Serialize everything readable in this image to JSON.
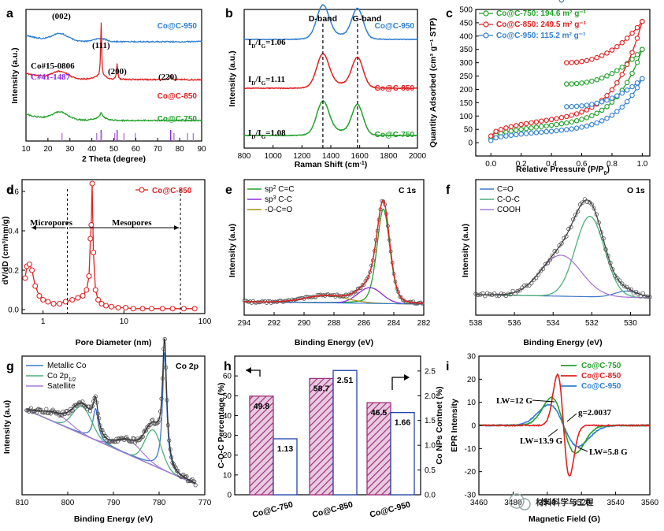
{
  "colors": {
    "green": "#22a02a",
    "red": "#e02020",
    "blue": "#2f7fd0",
    "purple": "#8a2be2",
    "hatch": "#a0307f",
    "olive": "#a89020",
    "darkgreen": "#1f8f6f",
    "lightpurple": "#b07ad6",
    "fit_green": "#4caf7a",
    "fit_purple": "#a77bd6",
    "fit_blue": "#3f78c8",
    "gray": "#555555"
  },
  "panels": [
    {
      "id": "a",
      "label": "a",
      "xlabel": "2 Theta (degree)",
      "ylabel": "Intensity (a.u.)",
      "xlim": [
        10,
        90
      ],
      "xticks": [
        "10",
        "20",
        "30",
        "40",
        "50",
        "60",
        "70",
        "80",
        "90"
      ],
      "series": [
        {
          "name": "Co@C-950"
        },
        {
          "name": "Co@C-850"
        },
        {
          "name": "Co@C-750"
        }
      ],
      "annotations": [
        "(002)",
        "(111)",
        "(200)",
        "(220)",
        "Co#15-0806",
        "C#41-1487"
      ],
      "reference_lines_co": [
        44.2,
        51.5,
        75.9
      ],
      "reference_lines_c": [
        26.4,
        42.2,
        44.4,
        50.4,
        54.6,
        59.8,
        77.4,
        83.6,
        86.2
      ]
    },
    {
      "id": "b",
      "label": "b",
      "xlabel": "Raman Shift (cm",
      "xlabel_sup": "-1",
      "xlabel_end": ")",
      "ylabel": "Intensity (a.u.)",
      "xlim": [
        800,
        2000
      ],
      "xticks": [
        "800",
        "1000",
        "1200",
        "1400",
        "1600",
        "1800",
        "2000"
      ],
      "series": [
        {
          "name": "Co@C-950",
          "ratio": "=1.06"
        },
        {
          "name": "Co@C-850",
          "ratio": "=1.11"
        },
        {
          "name": "Co@C-750",
          "ratio": "=1.08"
        }
      ],
      "band_labels": [
        "D-band",
        "G-band"
      ],
      "d_band": 1345,
      "g_band": 1585
    },
    {
      "id": "c",
      "label": "c",
      "xlabel": "Relative Pressure (P/P",
      "xlabel_sub": "0",
      "xlabel_end": ")",
      "ylabel": "Quantity Adsorbed (cm³ g⁻¹ STP)",
      "xlim": [
        -0.1,
        1.05
      ],
      "ylim": [
        -50,
        500
      ],
      "xticks": [
        "0.0",
        "0.2",
        "0.4",
        "0.6",
        "0.8",
        "1.0"
      ],
      "yticks": [
        "0",
        "50",
        "100",
        "150",
        "200",
        "250",
        "300",
        "350",
        "400",
        "450",
        "500"
      ],
      "legend": [
        "Co@C-750: 194.6 m² g⁻¹",
        "Co@C-850: 249.5 m² g⁻¹",
        "Co@C-950: 115.2 m² g⁻¹"
      ],
      "series": [
        {
          "name": "Co@C-750",
          "ads_max": 350,
          "des_jump": 220
        },
        {
          "name": "Co@C-850",
          "ads_max": 455,
          "des_jump": 300
        },
        {
          "name": "Co@C-950",
          "ads_max": 240,
          "des_jump": 135
        }
      ]
    },
    {
      "id": "d",
      "label": "d",
      "xlabel": "Pore Diameter (nm)",
      "ylabel": "dV/dD (cm³/nm/g)",
      "ylim": [
        -0.02,
        0.66
      ],
      "xticks": [
        "1",
        "10",
        "100"
      ],
      "yticks": [
        "0.0",
        "0.2",
        "0.4",
        "0.6"
      ],
      "legend": [
        "Co@C-850"
      ],
      "region_labels": [
        "Micropores",
        "Mesopores"
      ],
      "x": [
        0.6,
        0.63,
        0.68,
        0.73,
        0.8,
        0.9,
        1.0,
        1.15,
        1.35,
        1.6,
        1.9,
        2.3,
        2.7,
        3.1,
        3.45,
        3.7,
        3.85,
        3.95,
        4.05,
        4.2,
        4.45,
        4.8,
        5.3,
        6,
        7,
        8.5,
        10.5,
        13,
        17,
        22,
        30,
        40,
        55,
        75
      ],
      "y": [
        0.16,
        0.22,
        0.23,
        0.2,
        0.12,
        0.07,
        0.05,
        0.04,
        0.03,
        0.03,
        0.04,
        0.05,
        0.06,
        0.07,
        0.1,
        0.17,
        0.36,
        0.43,
        0.64,
        0.29,
        0.1,
        0.05,
        0.03,
        0.02,
        0.015,
        0.01,
        0.01,
        0.005,
        0.005,
        0.005,
        0.005,
        0.005,
        0.005,
        0.005
      ]
    },
    {
      "id": "e",
      "label": "e",
      "title": "C 1s",
      "xlabel": "Binding Energy (eV)",
      "ylabel": "Intensity (a.u)",
      "xlim": [
        294,
        282
      ],
      "xticks": [
        "294",
        "292",
        "290",
        "288",
        "286",
        "284",
        "282"
      ],
      "legend": [
        {
          "prefix": "sp",
          "sup": "2",
          "rest": " C=C"
        },
        {
          "prefix": "sp",
          "sup": "3",
          "rest": " C-C"
        },
        {
          "prefix": "-O-C=O",
          "sup": "",
          "rest": ""
        }
      ]
    },
    {
      "id": "f",
      "label": "f",
      "title": "O 1s",
      "xlabel": "Binding Energy (eV)",
      "ylabel": "Intensity (a.u)",
      "xlim": [
        538,
        529
      ],
      "xticks": [
        "538",
        "536",
        "534",
        "532",
        "530"
      ],
      "legend": [
        "C=O",
        "C-O-C",
        "COOH"
      ]
    },
    {
      "id": "g",
      "label": "g",
      "title": "Co 2p",
      "xlabel": "Binding Energy (eV)",
      "ylabel": "Intensity (a.u)",
      "xlim": [
        810,
        770
      ],
      "xticks": [
        "810",
        "800",
        "790",
        "780",
        "770"
      ],
      "legend": [
        {
          "text": "Metallic Co",
          "sub": ""
        },
        {
          "text": "Co 2p",
          "sub": "1/2"
        },
        {
          "text": "Satellite",
          "sub": ""
        }
      ]
    },
    {
      "id": "h",
      "label": "h",
      "type": "bar",
      "ylabel": "C-O-C Percentage (%)",
      "ylabel_right": "Co NPs Contnet (%)",
      "ylim_left": [
        0,
        70
      ],
      "ylim_right": [
        0,
        2.8
      ],
      "yticks_left": [
        "0",
        "10",
        "20",
        "30",
        "40",
        "50",
        "60"
      ],
      "yticks_right": [
        "0.0",
        "0.5",
        "1.0",
        "1.5",
        "2.0",
        "2.5"
      ],
      "categories": [
        "Co@C-750",
        "Co@C-850",
        "Co@C-950"
      ],
      "series": [
        {
          "name": "C-O-C Percentage",
          "values": [
            49.8,
            58.7,
            46.5
          ],
          "labels": [
            "49.8",
            "58.7",
            "46.5"
          ]
        },
        {
          "name": "Co NPs Contnet",
          "values": [
            1.13,
            2.51,
            1.66
          ],
          "labels": [
            "1.13",
            "2.51",
            "1.66"
          ]
        }
      ]
    },
    {
      "id": "i",
      "label": "i",
      "xlabel": "Magnetic Field (G)",
      "ylabel": "EPR Intensity",
      "xlim": [
        3460,
        3560
      ],
      "ylim": [
        -30,
        30
      ],
      "xticks": [
        "3460",
        "3480",
        "3500",
        "3520",
        "3540",
        "3560"
      ],
      "yticks": [
        "-30",
        "-20",
        "-10",
        "0",
        "10",
        "20",
        "30"
      ],
      "legend": [
        "Co@C-750",
        "Co@C-850",
        "Co@C-950"
      ],
      "annotations": [
        "LW=12 G",
        "g=2.0037",
        "LW=13.9 G",
        "LW=5.8 G"
      ],
      "series": [
        {
          "name": "Co@C-750",
          "amp": 12,
          "width": 7
        },
        {
          "name": "Co@C-850",
          "amp": 22,
          "width": 3.5
        },
        {
          "name": "Co@C-950",
          "amp": 9,
          "width": 8.5
        }
      ]
    }
  ],
  "watermark": "材料科学与工程"
}
